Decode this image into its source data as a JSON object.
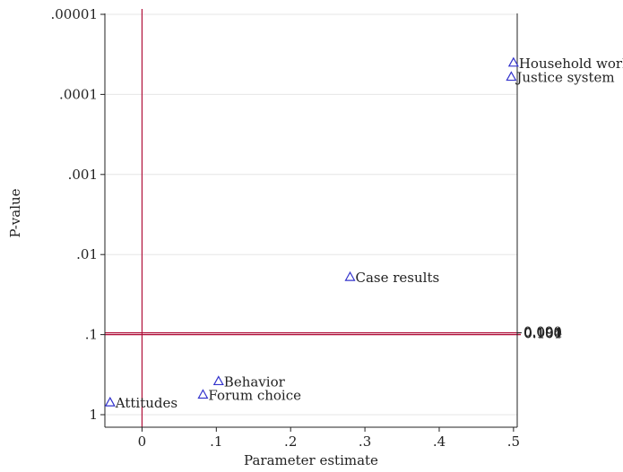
{
  "chart_data": {
    "type": "scatter",
    "title": "",
    "xlabel": "Parameter estimate",
    "ylabel": "P-value",
    "xlim": [
      -0.05,
      0.505
    ],
    "y_scale": "log-reversed",
    "ylim": [
      1,
      1e-05
    ],
    "x_ticks": [
      {
        "value": 0,
        "label": "0"
      },
      {
        "value": 0.1,
        "label": ".1"
      },
      {
        "value": 0.2,
        "label": ".2"
      },
      {
        "value": 0.3,
        "label": ".3"
      },
      {
        "value": 0.4,
        "label": ".4"
      },
      {
        "value": 0.5,
        "label": ".5"
      }
    ],
    "y_ticks": [
      {
        "value": 1e-05,
        "label": ".00001"
      },
      {
        "value": 0.0001,
        "label": ".0001"
      },
      {
        "value": 0.001,
        "label": ".001"
      },
      {
        "value": 0.01,
        "label": ".01"
      },
      {
        "value": 0.1,
        "label": ".1"
      },
      {
        "value": 1,
        "label": "1"
      }
    ],
    "grid": true,
    "marker": "triangle",
    "marker_color": "#3333cc",
    "line_color": "#b0103a",
    "vertical_reference_line_x": 0,
    "horizontal_reference_lines_p": [
      0.095,
      0.1
    ],
    "right_axis_labels": [
      "0.090",
      "0.094",
      "0.100",
      "0.101"
    ],
    "right_axis_label_value": 0.095,
    "points": [
      {
        "label": "Household work",
        "x": 0.5,
        "p": 4e-05
      },
      {
        "label": "Justice system",
        "x": 0.497,
        "p": 6e-05
      },
      {
        "label": "Case results",
        "x": 0.28,
        "p": 0.019
      },
      {
        "label": "Behavior",
        "x": 0.103,
        "p": 0.38
      },
      {
        "label": "Forum choice",
        "x": 0.082,
        "p": 0.56
      },
      {
        "label": "Attitudes",
        "x": -0.043,
        "p": 0.7
      }
    ]
  }
}
